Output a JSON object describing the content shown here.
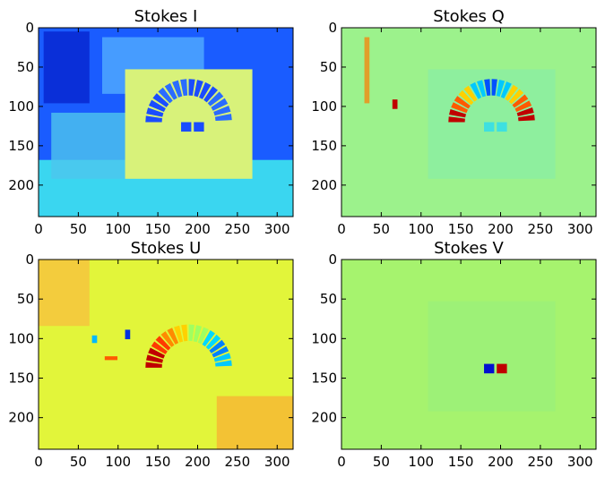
{
  "chart_data": [
    {
      "type": "heatmap",
      "title": "Stokes I",
      "x_range": [
        0,
        320
      ],
      "y_range": [
        240,
        0
      ],
      "x_ticks": [
        "0",
        "50",
        "100",
        "150",
        "200",
        "250",
        "300"
      ],
      "y_ticks": [
        "0",
        "50",
        "100",
        "150",
        "200"
      ],
      "colormap": "jet",
      "background_color": "#1a5cff",
      "grid": false
    },
    {
      "type": "heatmap",
      "title": "Stokes Q",
      "x_range": [
        0,
        320
      ],
      "y_range": [
        240,
        0
      ],
      "x_ticks": [
        "0",
        "50",
        "100",
        "150",
        "200",
        "250",
        "300"
      ],
      "y_ticks": [
        "0",
        "50",
        "100",
        "150",
        "200"
      ],
      "colormap": "jet",
      "background_color": "#9cf28c",
      "grid": false
    },
    {
      "type": "heatmap",
      "title": "Stokes U",
      "x_range": [
        0,
        320
      ],
      "y_range": [
        240,
        0
      ],
      "x_ticks": [
        "0",
        "50",
        "100",
        "150",
        "200",
        "250",
        "300"
      ],
      "y_ticks": [
        "0",
        "50",
        "100",
        "150",
        "200"
      ],
      "colormap": "jet",
      "background_color": "#e2f53a",
      "grid": false
    },
    {
      "type": "heatmap",
      "title": "Stokes V",
      "x_range": [
        0,
        320
      ],
      "y_range": [
        240,
        0
      ],
      "x_ticks": [
        "0",
        "50",
        "100",
        "150",
        "200",
        "250",
        "300"
      ],
      "y_ticks": [
        "0",
        "50",
        "100",
        "150",
        "200"
      ],
      "colormap": "jet",
      "background_color": "#a6f36e",
      "grid": false
    }
  ]
}
